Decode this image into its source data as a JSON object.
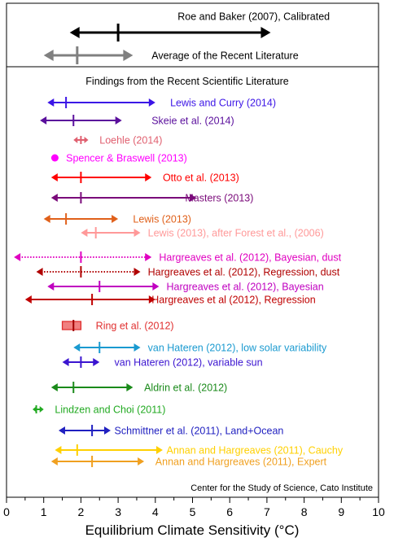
{
  "chart_data": {
    "type": "range-plot",
    "xlabel": "Equilibrium Climate Sensitivity (°C)",
    "xlim": [
      0,
      10
    ],
    "xticks": [
      0,
      1,
      2,
      3,
      4,
      5,
      6,
      7,
      8,
      9,
      10
    ],
    "top_panel": [
      {
        "label": "Roe and Baker (2007), Calibrated",
        "low": 1.7,
        "high": 7.1,
        "best": 3.0,
        "color": "#000000",
        "label_x": 4.6
      },
      {
        "label": "Average of the Recent Literature",
        "low": 1.0,
        "high": 3.4,
        "best": 1.9,
        "color": "#808080",
        "label_x": 3.9
      }
    ],
    "panel_title": "Findings from the Recent Scientific Literature",
    "findings": [
      {
        "label": "Lewis and Curry (2014)",
        "low": 1.1,
        "high": 4.0,
        "best": 1.6,
        "color": "#3b14e6",
        "label_x": 4.4,
        "style": "solid"
      },
      {
        "label": "Skeie et al. (2014)",
        "low": 0.9,
        "high": 3.1,
        "best": 1.8,
        "color": "#5a0f9c",
        "label_x": 3.9,
        "style": "solid"
      },
      {
        "label": "Loehle (2014)",
        "low": 1.8,
        "high": 2.2,
        "best": 2.0,
        "color": "#e06070",
        "label_x": 2.5,
        "style": "solid"
      },
      {
        "label": "Spencer & Braswell (2013)",
        "low": null,
        "high": null,
        "best": 1.3,
        "color": "#ff00ff",
        "label_x": 1.6,
        "style": "dot"
      },
      {
        "label": "Otto et al. (2013)",
        "low": 1.2,
        "high": 3.9,
        "best": 2.0,
        "color": "#ff0000",
        "label_x": 4.2,
        "style": "solid"
      },
      {
        "label": "Masters (2013)",
        "low": 1.2,
        "high": 5.1,
        "best": 2.0,
        "color": "#7a0a7a",
        "label_x": 4.8,
        "style": "solid"
      },
      {
        "label": "Lewis (2013)",
        "low": 1.0,
        "high": 3.0,
        "best": 1.6,
        "color": "#e0601a",
        "label_x": 3.4,
        "style": "solid"
      },
      {
        "label": "Lewis (2013), after Forest et al., (2006)",
        "low": 2.0,
        "high": 3.6,
        "best": 2.4,
        "color": "#ff9999",
        "label_x": 3.8,
        "style": "solid"
      },
      {
        "label": "Hargreaves et al. (2012), Bayesian, dust",
        "low": 0.2,
        "high": 3.9,
        "best": 2.0,
        "color": "#e000c0",
        "label_x": 4.1,
        "style": "dotted"
      },
      {
        "label": "Hargreaves et al. (2012), Regression, dust",
        "low": 0.8,
        "high": 3.6,
        "best": 2.0,
        "color": "#b00000",
        "label_x": 3.8,
        "style": "dotted"
      },
      {
        "label": "Hargreaves et al. (2012), Bayesian",
        "low": 1.1,
        "high": 4.1,
        "best": 2.5,
        "color": "#c000c0",
        "label_x": 4.3,
        "style": "solid"
      },
      {
        "label": "Hargreaves et al (2012), Regression",
        "low": 0.5,
        "high": 4.0,
        "best": 2.3,
        "color": "#c00000",
        "label_x": 3.9,
        "style": "solid"
      },
      {
        "label": "Ring et al. (2012)",
        "low": 1.5,
        "high": 2.0,
        "best": 1.8,
        "color": "#e03030",
        "label_x": 2.4,
        "style": "box"
      },
      {
        "label": "van Hateren (2012), low solar variability",
        "low": 1.8,
        "high": 3.6,
        "best": 2.5,
        "color": "#1a9ad0",
        "label_x": 3.8,
        "style": "solid"
      },
      {
        "label": "van Hateren (2012), variable sun",
        "low": 1.5,
        "high": 2.5,
        "best": 2.0,
        "color": "#3b14d0",
        "label_x": 2.9,
        "style": "solid"
      },
      {
        "label": "Aldrin et al. (2012)",
        "low": 1.2,
        "high": 3.4,
        "best": 1.8,
        "color": "#1a8a1a",
        "label_x": 3.7,
        "style": "solid"
      },
      {
        "label": "Lindzen and Choi (2011)",
        "low": 0.7,
        "high": 1.0,
        "best": 0.8,
        "color": "#22aa22",
        "label_x": 1.3,
        "style": "solid"
      },
      {
        "label": "Schmittner et al.  (2011), Land+Ocean",
        "low": 1.4,
        "high": 2.8,
        "best": 2.3,
        "color": "#2020c0",
        "label_x": 2.9,
        "style": "solid"
      },
      {
        "label": "Annan and Hargreaves (2011), Cauchy",
        "low": 1.3,
        "high": 4.2,
        "best": 1.9,
        "color": "#ffd000",
        "label_x": 4.3,
        "style": "solid"
      },
      {
        "label": "Annan and Hargreaves (2011), Expert",
        "low": 1.2,
        "high": 3.7,
        "best": 2.3,
        "color": "#f0a020",
        "label_x": 4.0,
        "style": "solid"
      }
    ],
    "source_note": "Center for the Study of Science, Cato Institute",
    "grid": false,
    "legend": "none"
  }
}
